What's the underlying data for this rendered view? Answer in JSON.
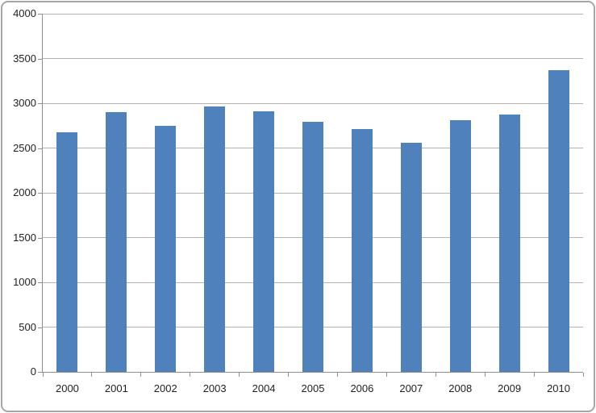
{
  "chart_data": {
    "type": "bar",
    "title": "",
    "categories": [
      "2000",
      "2001",
      "2002",
      "2003",
      "2004",
      "2005",
      "2006",
      "2007",
      "2008",
      "2009",
      "2010"
    ],
    "values": [
      2680,
      2900,
      2750,
      2960,
      2910,
      2790,
      2710,
      2560,
      2810,
      2870,
      3370
    ],
    "xlabel": "",
    "ylabel": "",
    "ylim": [
      0,
      4000
    ],
    "y_tick_step": 500,
    "y_tick_labels": [
      "0",
      "500",
      "1000",
      "1500",
      "2000",
      "2500",
      "3000",
      "3500",
      "4000"
    ],
    "grid": "horizontal",
    "legend": "none"
  },
  "colors": {
    "bar_fill": "#4f81bd",
    "gridline": "#b3b3b3",
    "axis": "#8e8e8e",
    "text": "#1f1f1f",
    "frame_border": "#a6a6a6",
    "background": "#ffffff"
  }
}
